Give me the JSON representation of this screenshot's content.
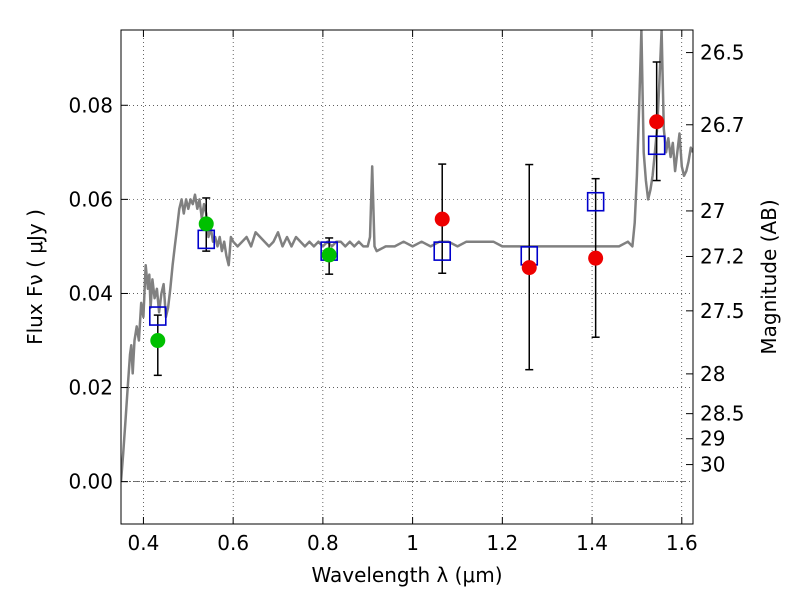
{
  "chart_data": {
    "type": "scatter",
    "xlabel": "Wavelength  λ (μm)",
    "ylabel": "Flux  Fν  ( μJy )",
    "y2label": "Magnitude (AB)",
    "xlim": [
      0.35,
      1.625
    ],
    "ylim": [
      -0.009,
      0.096
    ],
    "grid": true,
    "x_ticks": [
      {
        "value": 0.4,
        "label": "0.4"
      },
      {
        "value": 0.6,
        "label": "0.6"
      },
      {
        "value": 0.8,
        "label": "0.8"
      },
      {
        "value": 1.0,
        "label": "1"
      },
      {
        "value": 1.2,
        "label": "1.2"
      },
      {
        "value": 1.4,
        "label": "1.4"
      },
      {
        "value": 1.6,
        "label": "1.6"
      }
    ],
    "y_ticks": [
      {
        "value": 0.0,
        "label": "0.00"
      },
      {
        "value": 0.02,
        "label": "0.02"
      },
      {
        "value": 0.04,
        "label": "0.04"
      },
      {
        "value": 0.06,
        "label": "0.06"
      },
      {
        "value": 0.08,
        "label": "0.08"
      }
    ],
    "y2_ticks": [
      {
        "value": 26.5,
        "label": "26.5"
      },
      {
        "value": 26.7,
        "label": "26.7"
      },
      {
        "value": 27.0,
        "label": "27"
      },
      {
        "value": 27.2,
        "label": "27.2"
      },
      {
        "value": 27.5,
        "label": "27.5"
      },
      {
        "value": 28.0,
        "label": "28"
      },
      {
        "value": 28.5,
        "label": "28.5"
      },
      {
        "value": 29.0,
        "label": "29"
      },
      {
        "value": 30.0,
        "label": "30"
      }
    ],
    "template_spectrum": {
      "color": "#808080",
      "points": [
        [
          0.35,
          0.0
        ],
        [
          0.355,
          0.006
        ],
        [
          0.36,
          0.013
        ],
        [
          0.365,
          0.02
        ],
        [
          0.37,
          0.027
        ],
        [
          0.373,
          0.029
        ],
        [
          0.376,
          0.023
        ],
        [
          0.38,
          0.03
        ],
        [
          0.385,
          0.033
        ],
        [
          0.39,
          0.03
        ],
        [
          0.395,
          0.038
        ],
        [
          0.4,
          0.035
        ],
        [
          0.405,
          0.046
        ],
        [
          0.41,
          0.041
        ],
        [
          0.413,
          0.044
        ],
        [
          0.416,
          0.037
        ],
        [
          0.42,
          0.043
        ],
        [
          0.425,
          0.039
        ],
        [
          0.43,
          0.041
        ],
        [
          0.435,
          0.036
        ],
        [
          0.44,
          0.04
        ],
        [
          0.445,
          0.042
        ],
        [
          0.45,
          0.035
        ],
        [
          0.455,
          0.037
        ],
        [
          0.46,
          0.041
        ],
        [
          0.465,
          0.046
        ],
        [
          0.47,
          0.05
        ],
        [
          0.475,
          0.054
        ],
        [
          0.48,
          0.058
        ],
        [
          0.485,
          0.06
        ],
        [
          0.49,
          0.057
        ],
        [
          0.495,
          0.06
        ],
        [
          0.5,
          0.058
        ],
        [
          0.505,
          0.06
        ],
        [
          0.51,
          0.059
        ],
        [
          0.515,
          0.061
        ],
        [
          0.52,
          0.058
        ],
        [
          0.525,
          0.06
        ],
        [
          0.53,
          0.056
        ],
        [
          0.535,
          0.059
        ],
        [
          0.54,
          0.057
        ],
        [
          0.545,
          0.052
        ],
        [
          0.55,
          0.054
        ],
        [
          0.555,
          0.051
        ],
        [
          0.56,
          0.052
        ],
        [
          0.565,
          0.05
        ],
        [
          0.57,
          0.052
        ],
        [
          0.575,
          0.049
        ],
        [
          0.58,
          0.051
        ],
        [
          0.585,
          0.048
        ],
        [
          0.59,
          0.046
        ],
        [
          0.595,
          0.052
        ],
        [
          0.6,
          0.051
        ],
        [
          0.61,
          0.05
        ],
        [
          0.62,
          0.051
        ],
        [
          0.63,
          0.052
        ],
        [
          0.64,
          0.05
        ],
        [
          0.65,
          0.053
        ],
        [
          0.66,
          0.052
        ],
        [
          0.67,
          0.051
        ],
        [
          0.68,
          0.05
        ],
        [
          0.69,
          0.051
        ],
        [
          0.7,
          0.053
        ],
        [
          0.71,
          0.05
        ],
        [
          0.72,
          0.052
        ],
        [
          0.73,
          0.05
        ],
        [
          0.74,
          0.052
        ],
        [
          0.75,
          0.051
        ],
        [
          0.76,
          0.05
        ],
        [
          0.77,
          0.051
        ],
        [
          0.78,
          0.05
        ],
        [
          0.79,
          0.051
        ],
        [
          0.8,
          0.05
        ],
        [
          0.81,
          0.051
        ],
        [
          0.82,
          0.05
        ],
        [
          0.83,
          0.051
        ],
        [
          0.84,
          0.051
        ],
        [
          0.85,
          0.05
        ],
        [
          0.86,
          0.051
        ],
        [
          0.87,
          0.05
        ],
        [
          0.88,
          0.051
        ],
        [
          0.89,
          0.05
        ],
        [
          0.9,
          0.05
        ],
        [
          0.905,
          0.052
        ],
        [
          0.91,
          0.067
        ],
        [
          0.915,
          0.05
        ],
        [
          0.92,
          0.049
        ],
        [
          0.94,
          0.05
        ],
        [
          0.96,
          0.05
        ],
        [
          0.98,
          0.051
        ],
        [
          1.0,
          0.05
        ],
        [
          1.02,
          0.051
        ],
        [
          1.04,
          0.05
        ],
        [
          1.06,
          0.051
        ],
        [
          1.08,
          0.051
        ],
        [
          1.1,
          0.05
        ],
        [
          1.12,
          0.051
        ],
        [
          1.14,
          0.051
        ],
        [
          1.16,
          0.051
        ],
        [
          1.18,
          0.051
        ],
        [
          1.2,
          0.05
        ],
        [
          1.22,
          0.05
        ],
        [
          1.24,
          0.05
        ],
        [
          1.26,
          0.05
        ],
        [
          1.28,
          0.05
        ],
        [
          1.3,
          0.05
        ],
        [
          1.32,
          0.05
        ],
        [
          1.34,
          0.05
        ],
        [
          1.36,
          0.05
        ],
        [
          1.38,
          0.05
        ],
        [
          1.4,
          0.05
        ],
        [
          1.42,
          0.05
        ],
        [
          1.44,
          0.05
        ],
        [
          1.46,
          0.05
        ],
        [
          1.48,
          0.051
        ],
        [
          1.49,
          0.05
        ],
        [
          1.495,
          0.055
        ],
        [
          1.5,
          0.065
        ],
        [
          1.505,
          0.08
        ],
        [
          1.51,
          0.096
        ],
        [
          1.515,
          0.07
        ],
        [
          1.52,
          0.064
        ],
        [
          1.525,
          0.06
        ],
        [
          1.53,
          0.062
        ],
        [
          1.535,
          0.065
        ],
        [
          1.54,
          0.07
        ],
        [
          1.545,
          0.075
        ],
        [
          1.55,
          0.085
        ],
        [
          1.555,
          0.096
        ],
        [
          1.56,
          0.075
        ],
        [
          1.565,
          0.07
        ],
        [
          1.57,
          0.073
        ],
        [
          1.575,
          0.069
        ],
        [
          1.58,
          0.072
        ],
        [
          1.585,
          0.066
        ],
        [
          1.59,
          0.07
        ],
        [
          1.595,
          0.074
        ],
        [
          1.6,
          0.067
        ],
        [
          1.605,
          0.065
        ],
        [
          1.61,
          0.066
        ],
        [
          1.615,
          0.068
        ],
        [
          1.62,
          0.071
        ],
        [
          1.625,
          0.07
        ]
      ]
    },
    "model_boxes": {
      "color": "#0000cc",
      "points": [
        {
          "x": 0.432,
          "y": 0.0352
        },
        {
          "x": 0.54,
          "y": 0.0515
        },
        {
          "x": 0.814,
          "y": 0.049
        },
        {
          "x": 1.066,
          "y": 0.049
        },
        {
          "x": 1.26,
          "y": 0.048
        },
        {
          "x": 1.408,
          "y": 0.0595
        },
        {
          "x": 1.544,
          "y": 0.0715
        }
      ]
    },
    "observed_points": [
      {
        "x": 0.432,
        "y": 0.03,
        "yerr_low": 0.0226,
        "yerr_high": 0.0354,
        "color": "#00c000"
      },
      {
        "x": 0.54,
        "y": 0.0548,
        "yerr_low": 0.049,
        "yerr_high": 0.0603,
        "color": "#00c000"
      },
      {
        "x": 0.814,
        "y": 0.0482,
        "yerr_low": 0.0441,
        "yerr_high": 0.0518,
        "color": "#00c000"
      },
      {
        "x": 1.066,
        "y": 0.0558,
        "yerr_low": 0.0443,
        "yerr_high": 0.0675,
        "color": "#ee0000"
      },
      {
        "x": 1.26,
        "y": 0.0455,
        "yerr_low": 0.0238,
        "yerr_high": 0.0674,
        "color": "#ee0000"
      },
      {
        "x": 1.408,
        "y": 0.0475,
        "yerr_low": 0.0307,
        "yerr_high": 0.0644,
        "color": "#ee0000"
      },
      {
        "x": 1.544,
        "y": 0.0765,
        "yerr_low": 0.064,
        "yerr_high": 0.0892,
        "color": "#ee0000"
      }
    ],
    "zero_line": {
      "y": 0.0,
      "style": "dash-dot"
    }
  }
}
